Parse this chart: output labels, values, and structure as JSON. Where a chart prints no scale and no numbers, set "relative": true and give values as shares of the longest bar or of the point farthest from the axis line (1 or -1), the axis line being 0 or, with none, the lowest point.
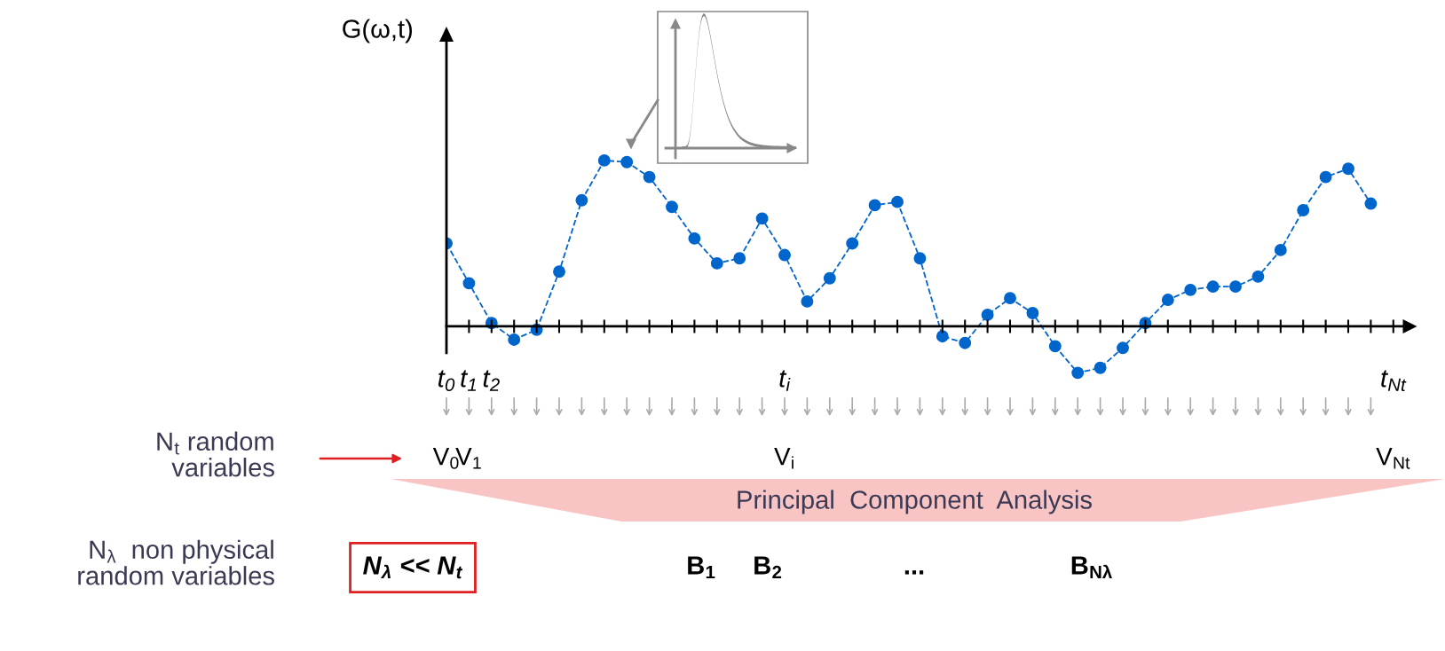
{
  "chart_data": {
    "type": "line",
    "relative": true,
    "ylabel": "G(ω,t)",
    "categories": [
      "t$_{0}$",
      "t$_{1}$",
      "t$_{2}$",
      null,
      null,
      null,
      null,
      null,
      null,
      null,
      null,
      null,
      null,
      null,
      null,
      "t$_{i}$",
      null,
      null,
      null,
      null,
      null,
      null,
      null,
      null,
      null,
      null,
      null,
      null,
      null,
      null,
      null,
      null,
      null,
      null,
      null,
      null,
      null,
      null,
      null,
      null,
      null,
      null,
      "t$_{Nt}$"
    ],
    "series": [
      {
        "color": "#0066cc",
        "values": [
          0.5,
          0.26,
          0.02,
          -0.08,
          -0.02,
          0.33,
          0.76,
          1.0,
          0.99,
          0.9,
          0.72,
          0.53,
          0.38,
          0.41,
          0.65,
          0.43,
          0.15,
          0.29,
          0.5,
          0.73,
          0.75,
          0.41,
          -0.06,
          -0.1,
          0.07,
          0.17,
          0.08,
          -0.12,
          -0.28,
          -0.25,
          -0.13,
          0.02,
          0.16,
          0.22,
          0.24,
          0.24,
          0.3,
          0.46,
          0.7,
          0.9,
          0.95,
          0.74,
          null
        ]
      }
    ],
    "marker": "circle",
    "line_style": "dashed",
    "grid": false,
    "annotations": [
      "N$_{t}$ random\nvariables",
      "V$_{0}$",
      "V$_{1}$",
      "V$_{i}$",
      "V$_{Nt}$",
      "Principal  Component  Analysis",
      "N$_{λ}$  non physical\nrandom variables",
      "N$_{λ}$ << N$_{t}$",
      "B$_{1}$",
      "B$_{2}$",
      "...",
      "B$_{Nλ}$"
    ]
  }
}
